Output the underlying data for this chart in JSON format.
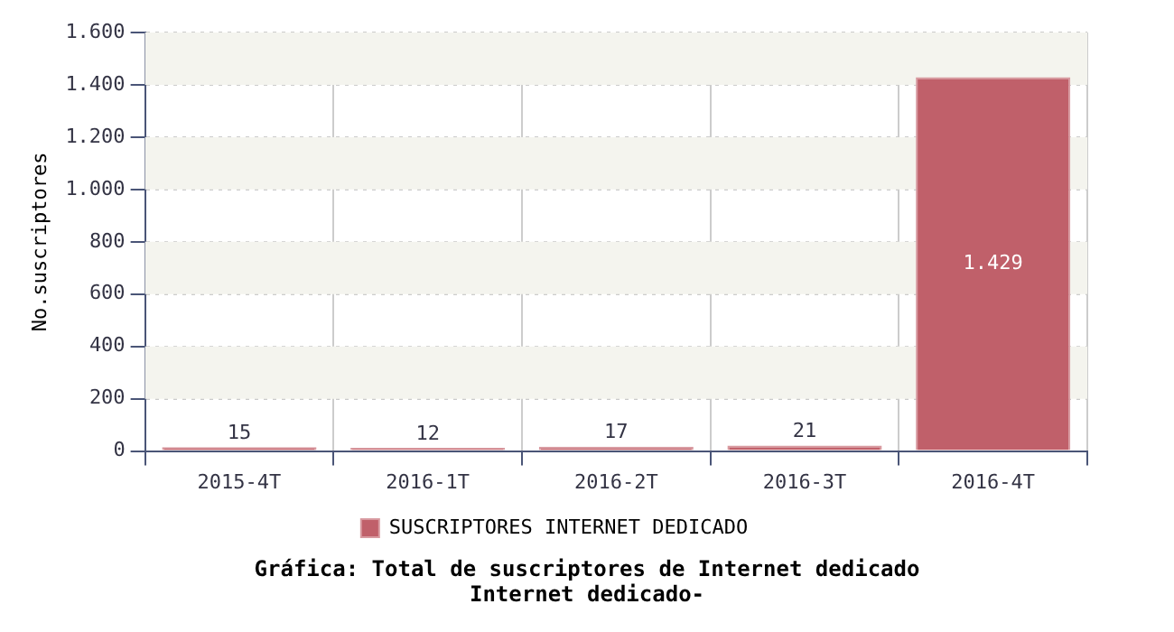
{
  "chart_data": {
    "type": "bar",
    "title": "Gráfica: Total de suscriptores de Internet dedicado",
    "subtitle": "Internet dedicado-",
    "ylabel": "No.suscriptores",
    "categories": [
      "2015-4T",
      "2016-1T",
      "2016-2T",
      "2016-3T",
      "2016-4T"
    ],
    "series": [
      {
        "name": "SUSCRIPTORES INTERNET DEDICADO",
        "color": "#c0606a",
        "values": [
          15,
          12,
          17,
          21,
          1429
        ],
        "value_labels": [
          "15",
          "12",
          "17",
          "21",
          "1.429"
        ]
      }
    ],
    "ylim": [
      0,
      1600
    ],
    "yticks": [
      {
        "value": 0,
        "label": "0"
      },
      {
        "value": 200,
        "label": "200"
      },
      {
        "value": 400,
        "label": "400"
      },
      {
        "value": 600,
        "label": "600"
      },
      {
        "value": 800,
        "label": "800"
      },
      {
        "value": 1000,
        "label": "1.000"
      },
      {
        "value": 1200,
        "label": "1.200"
      },
      {
        "value": 1400,
        "label": "1.400"
      },
      {
        "value": 1600,
        "label": "1.600"
      }
    ],
    "grid": true,
    "legend": "bottom"
  }
}
